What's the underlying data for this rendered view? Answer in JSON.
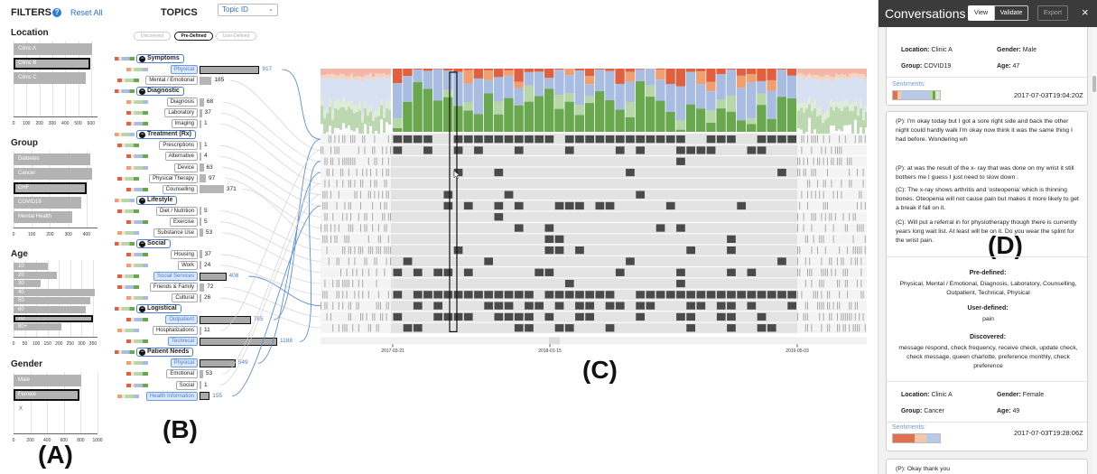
{
  "filters": {
    "title": "FILTERS",
    "help_icon": "question-circle-icon",
    "reset_label": "Reset All",
    "facets": [
      {
        "title": "Location",
        "max": 650,
        "ticks": [
          "0",
          "100",
          "200",
          "300",
          "400",
          "500",
          "600"
        ],
        "items": [
          {
            "label": "Clinic A",
            "value": 610,
            "selected": false
          },
          {
            "label": "Clinic B",
            "value": 595,
            "selected": true
          },
          {
            "label": "Clinic C",
            "value": 560,
            "selected": false
          }
        ]
      },
      {
        "title": "Group",
        "max": 460,
        "ticks": [
          "0",
          "100",
          "200",
          "300",
          "400"
        ],
        "items": [
          {
            "label": "Diabetes",
            "value": 420,
            "selected": false
          },
          {
            "label": "Cancer",
            "value": 430,
            "selected": false
          },
          {
            "label": "CHF",
            "value": 400,
            "selected": true
          },
          {
            "label": "COVID19",
            "value": 370,
            "selected": false
          },
          {
            "label": "Mental Health",
            "value": 320,
            "selected": false
          }
        ]
      },
      {
        "title": "Age",
        "max": 370,
        "ticks": [
          "0",
          "50",
          "100",
          "150",
          "200",
          "250",
          "300",
          "350"
        ],
        "items": [
          {
            "label": "10",
            "value": 150,
            "selected": false
          },
          {
            "label": "20",
            "value": 190,
            "selected": false
          },
          {
            "label": "30",
            "value": 120,
            "selected": false
          },
          {
            "label": "40",
            "value": 360,
            "selected": false
          },
          {
            "label": "50",
            "value": 340,
            "selected": false
          },
          {
            "label": "60",
            "value": 320,
            "selected": false
          },
          {
            "label": "70",
            "value": 350,
            "selected": true
          },
          {
            "label": "80+",
            "value": 210,
            "selected": false
          }
        ]
      },
      {
        "title": "Gender",
        "max": 1000,
        "ticks": [
          "0",
          "200",
          "400",
          "600",
          "800",
          "1000"
        ],
        "items": [
          {
            "label": "Male",
            "value": 810,
            "selected": false
          },
          {
            "label": "Female",
            "value": 790,
            "selected": true
          },
          {
            "label": "X",
            "value": 0,
            "selected": false
          }
        ]
      }
    ]
  },
  "topics": {
    "title": "TOPICS",
    "select_value": "Topic ID",
    "modes": [
      {
        "label": "Discovered",
        "active": false
      },
      {
        "label": "Pre-Defined",
        "active": true
      },
      {
        "label": "User-Defined",
        "active": false
      }
    ],
    "rows": [
      {
        "kind": "cat",
        "label": "Symptoms"
      },
      {
        "kind": "topic",
        "label": "Physical",
        "count": 917,
        "highlight": true,
        "selected": true
      },
      {
        "kind": "topic",
        "label": "Mental / Emotional",
        "count": 185
      },
      {
        "kind": "cat",
        "label": "Diagnostic"
      },
      {
        "kind": "topic",
        "label": "Diagnosis",
        "count": 68
      },
      {
        "kind": "topic",
        "label": "Laboratory",
        "count": 37
      },
      {
        "kind": "topic",
        "label": "Imaging",
        "count": 1
      },
      {
        "kind": "cat",
        "label": "Treatment (Rx)"
      },
      {
        "kind": "topic",
        "label": "Prescriptions",
        "count": 1
      },
      {
        "kind": "topic",
        "label": "Alternative",
        "count": 4
      },
      {
        "kind": "topic",
        "label": "Device",
        "count": 63
      },
      {
        "kind": "topic",
        "label": "Physical Therapy",
        "count": 97
      },
      {
        "kind": "topic",
        "label": "Counselling",
        "count": 371
      },
      {
        "kind": "cat",
        "label": "Lifestyle"
      },
      {
        "kind": "topic",
        "label": "Diet / Nutrition",
        "count": 5
      },
      {
        "kind": "topic",
        "label": "Exercise",
        "count": 5
      },
      {
        "kind": "topic",
        "label": "Substance Use",
        "count": 53
      },
      {
        "kind": "cat",
        "label": "Social"
      },
      {
        "kind": "topic",
        "label": "Housing",
        "count": 37
      },
      {
        "kind": "topic",
        "label": "Work",
        "count": 24
      },
      {
        "kind": "topic",
        "label": "Social Services",
        "count": 408,
        "highlight": true,
        "selected": true
      },
      {
        "kind": "topic",
        "label": "Friends & Family",
        "count": 72
      },
      {
        "kind": "topic",
        "label": "Cultural",
        "count": 26
      },
      {
        "kind": "cat",
        "label": "Logistical"
      },
      {
        "kind": "topic",
        "label": "Outpatient",
        "count": 785,
        "highlight": true,
        "selected": true
      },
      {
        "kind": "topic",
        "label": "Hospitalizations",
        "count": 11
      },
      {
        "kind": "topic",
        "label": "Technical",
        "count": 1188,
        "highlight": true,
        "selected": true
      },
      {
        "kind": "cat",
        "label": "Patient Needs"
      },
      {
        "kind": "topic",
        "label": "Physical",
        "count": 549,
        "highlight": true,
        "selected": true
      },
      {
        "kind": "topic",
        "label": "Emotional",
        "count": 53
      },
      {
        "kind": "topic",
        "label": "Social",
        "count": 1
      },
      {
        "kind": "topic",
        "label": "Health Information",
        "count": 155,
        "highlight": true,
        "selected": true
      }
    ]
  },
  "timeline": {
    "dates": [
      "2017-03-21",
      "2018-01-15",
      "2019-05-03"
    ]
  },
  "panel_letters": {
    "a": "(A)",
    "b": "(B)",
    "c": "(C)",
    "d": "(D)"
  },
  "conversations": {
    "title": "Conversations",
    "buttons": {
      "view": "View",
      "validate": "Validate",
      "export": "Export"
    },
    "close_icon": "close-icon",
    "card1": {
      "location_label": "Location:",
      "location": "Clinic A",
      "gender_label": "Gender:",
      "gender": "Male",
      "group_label": "Group:",
      "group": "COVID19",
      "age_label": "Age:",
      "age": "47",
      "sentiments_label": "Sentiments:",
      "timestamp": "2017-07-03T19:04:20Z"
    },
    "card2": {
      "utterances": [
        "(P): I'm okay today but I got a sore right side and back the other night could hardly walk I'm okay now think it was the same thing I had before. Wondering wh",
        "(P): at was the result of the x- ray that was done on my wrist it still bothers me I guess I just need to slow down .",
        "(C): The x-ray shows arthritis and 'osteopenia' which is thinning bones. Oteopenia will not cause pain but makes it more likely to get a break if fall on it.",
        "(C): Will put a referral in for physiotherapy though there is currently years long wait list. At least will be on it. Do you wear the splint for the wrist pain."
      ],
      "predefined_label": "Pre-defined:",
      "predefined": "Physical, Mental / Emotional, Diagnosis, Laboratory, Counselling, Outpatient, Technical, Physical",
      "userdefined_label": "User-defined:",
      "userdefined": "pain",
      "discovered_label": "Discovered:",
      "discovered": "message respond, check frequency, receive check, update check, check message, queen charlotte, preference monthly, check preference",
      "location_label": "Location:",
      "location": "Clinic A",
      "gender_label": "Gender:",
      "gender": "Female",
      "group_label": "Group:",
      "group": "Cancer",
      "age_label": "Age:",
      "age": "49",
      "sentiments_label": "Sentiments:",
      "timestamp": "2017-07-03T19:28:06Z"
    },
    "card3": {
      "utterance": "(P): Okay thank you"
    }
  },
  "colors": {
    "accent_blue": "#4a7ed0",
    "bar_gray": "#b3b3b3",
    "cell_dark": "#4a4a4a",
    "green": "#6aa84f",
    "light_green": "#b7d7a8",
    "red": "#e06040",
    "orange": "#f0a070",
    "blue_seg": "#a9bde3"
  }
}
